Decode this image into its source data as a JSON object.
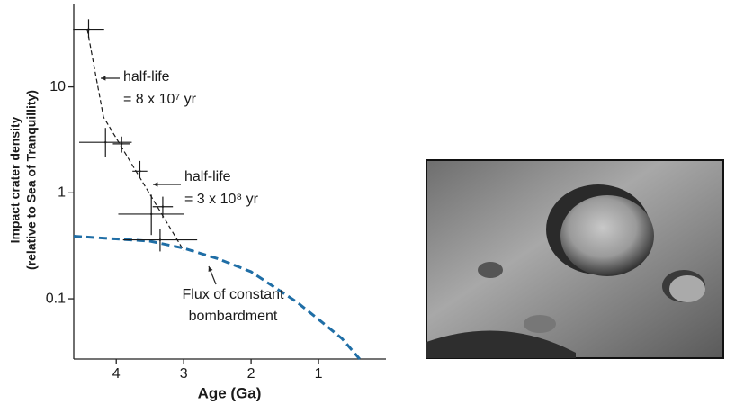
{
  "chart_data": {
    "type": "scatter",
    "y_label": [
      "Impact crater density",
      "(relative to Sea of Tranquillity)"
    ],
    "x_label": "Age (Ga)",
    "log_y": true,
    "xlim": [
      4.63,
      0
    ],
    "ylim": [
      0.027,
      60
    ],
    "xticks": [
      4,
      3,
      2,
      1
    ],
    "yticks": [
      0.1,
      1,
      10
    ],
    "points": {
      "color": "#1a1a1a",
      "x": [
        4.41,
        4.16,
        3.92,
        3.65,
        3.48,
        3.31,
        3.35
      ],
      "y": [
        35,
        3.0,
        2.9,
        1.6,
        0.63,
        0.74,
        0.36
      ],
      "xerr": [
        0.23,
        0.39,
        0.13,
        0.11,
        0.49,
        0.15,
        0.55
      ],
      "y_low": [
        29.1,
        2.2,
        2.4,
        1.4,
        0.4,
        0.58,
        0.28
      ],
      "y_high": [
        43.6,
        4.1,
        3.4,
        2.0,
        0.96,
        0.92,
        0.46
      ]
    },
    "fit_line": {
      "color": "#1a1a1a",
      "x": [
        4.43,
        4.19,
        3.0
      ],
      "y": [
        35,
        5.2,
        0.285
      ]
    },
    "flux_curve": {
      "color": "#1f6ea6",
      "x": [
        4.63,
        3.5,
        3,
        2.5,
        2,
        1.33,
        1,
        0.65,
        0.39
      ],
      "y": [
        0.39,
        0.35,
        0.3,
        0.24,
        0.18,
        0.094,
        0.064,
        0.042,
        0.027
      ]
    },
    "annotations": [
      [
        "half-life",
        "= 8 x 10⁷ yr"
      ],
      [
        "half-life",
        "= 3 x 10⁸ yr"
      ],
      [
        "Flux of constant",
        "bombardment"
      ]
    ]
  }
}
